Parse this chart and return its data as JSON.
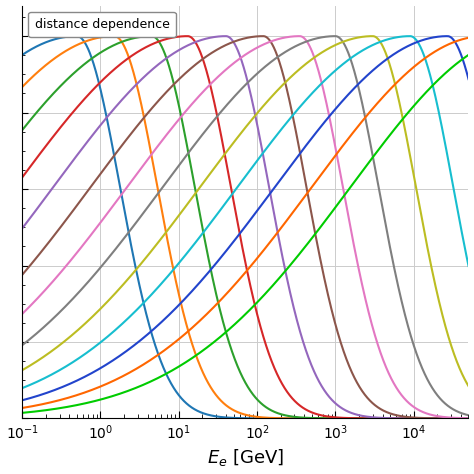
{
  "xlabel": "$E_e$ [GeV]",
  "legend_label": "distance dependence",
  "xmin": 0.1,
  "xmax": 50000,
  "curves": [
    {
      "color": "#1f77b4",
      "E_cut": 0.5,
      "alpha": 1.5
    },
    {
      "color": "#ff7f0e",
      "E_cut": 1.5,
      "alpha": 1.5
    },
    {
      "color": "#2ca02c",
      "E_cut": 4.5,
      "alpha": 1.5
    },
    {
      "color": "#d62728",
      "E_cut": 13.0,
      "alpha": 1.5
    },
    {
      "color": "#9467bd",
      "E_cut": 40.0,
      "alpha": 1.5
    },
    {
      "color": "#8c564b",
      "E_cut": 120.0,
      "alpha": 1.5
    },
    {
      "color": "#e377c2",
      "E_cut": 350.0,
      "alpha": 1.5
    },
    {
      "color": "#7f7f7f",
      "E_cut": 1000.0,
      "alpha": 1.5
    },
    {
      "color": "#bcbd22",
      "E_cut": 3000.0,
      "alpha": 1.5
    },
    {
      "color": "#17becf",
      "E_cut": 9000.0,
      "alpha": 1.5
    },
    {
      "color": "#2244cc",
      "E_cut": 27000.0,
      "alpha": 1.5
    },
    {
      "color": "#ff6600",
      "E_cut": 80000.0,
      "alpha": 1.5
    },
    {
      "color": "#00cc00",
      "E_cut": 250000.0,
      "alpha": 1.5
    }
  ]
}
